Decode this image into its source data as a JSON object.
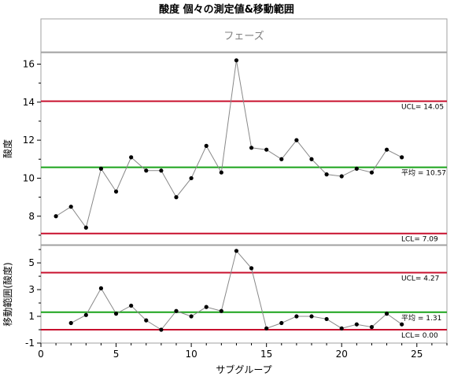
{
  "title": "酸度 個々の測定値&移動範囲",
  "phase_label": "フェーズ",
  "chart_data": [
    {
      "type": "line",
      "name": "individuals-chart",
      "ylabel": "酸度",
      "x": [
        1,
        2,
        3,
        4,
        5,
        6,
        7,
        8,
        9,
        10,
        11,
        12,
        13,
        14,
        15,
        16,
        17,
        18,
        19,
        20,
        21,
        22,
        23,
        24
      ],
      "values": [
        8.0,
        8.5,
        7.4,
        10.5,
        9.3,
        11.1,
        10.4,
        10.4,
        9.0,
        10.0,
        11.7,
        10.3,
        16.2,
        11.6,
        11.5,
        11.0,
        12.0,
        11.0,
        10.2,
        10.1,
        10.5,
        10.3,
        11.5,
        11.1
      ],
      "xlim": [
        0,
        27
      ],
      "ylim": [
        6.5,
        16.6
      ],
      "yticks": [
        8,
        10,
        12,
        14,
        16
      ],
      "limits": {
        "ucl": {
          "label": "UCL= 14.05",
          "value": 14.05,
          "color": "#c8102e"
        },
        "center": {
          "label": "平均 = 10.57",
          "value": 10.57,
          "color": "#1aa31a"
        },
        "lcl": {
          "label": "LCL= 7.09",
          "value": 7.09,
          "color": "#c8102e"
        }
      }
    },
    {
      "type": "line",
      "name": "moving-range-chart",
      "ylabel": "移動範囲(酸度)",
      "x": [
        2,
        3,
        4,
        5,
        6,
        7,
        8,
        9,
        10,
        11,
        12,
        13,
        14,
        15,
        16,
        17,
        18,
        19,
        20,
        21,
        22,
        23,
        24
      ],
      "values": [
        0.5,
        1.1,
        3.1,
        1.2,
        1.8,
        0.7,
        0.0,
        1.4,
        1.0,
        1.7,
        1.4,
        5.9,
        4.6,
        0.1,
        0.5,
        1.0,
        1.0,
        0.8,
        0.1,
        0.4,
        0.2,
        1.2,
        0.4
      ],
      "xlim": [
        0,
        27
      ],
      "ylim": [
        -1,
        6.3
      ],
      "yticks": [
        -1,
        1,
        3,
        5
      ],
      "limits": {
        "ucl": {
          "label": "UCL= 4.27",
          "value": 4.27,
          "color": "#c8102e"
        },
        "center": {
          "label": "平均 = 1.31",
          "value": 1.31,
          "color": "#1aa31a"
        },
        "lcl": {
          "label": "LCL= 0.00",
          "value": 0.0,
          "color": "#c8102e"
        }
      }
    }
  ],
  "x_axis": {
    "xlabel": "サブグループ",
    "ticks": [
      0,
      5,
      10,
      15,
      20,
      25
    ]
  }
}
